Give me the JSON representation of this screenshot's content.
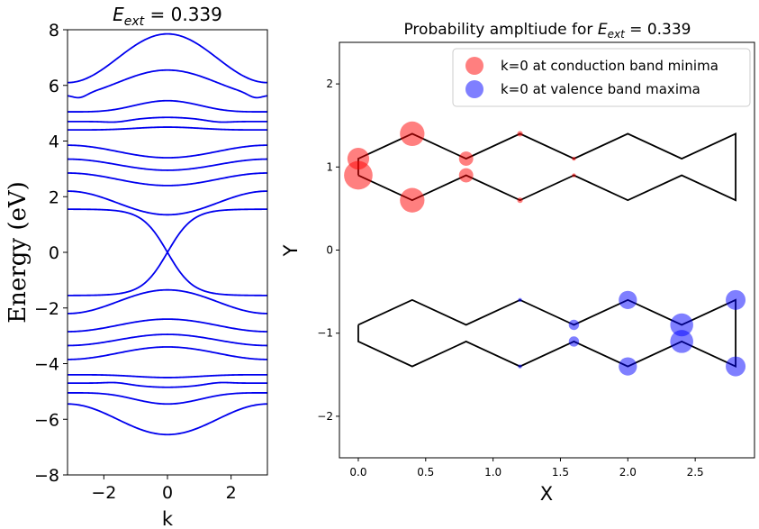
{
  "chart_data": [
    {
      "type": "line",
      "title": {
        "E": "E",
        "sub": "ext",
        "rest": " = 0.339"
      },
      "xlabel": "k",
      "ylabel": "Energy (eV)",
      "xlim": [
        -3.14159,
        3.14159
      ],
      "ylim": [
        -8,
        8
      ],
      "xticks": [
        -2,
        0,
        2
      ],
      "xtick_labels": [
        "−2",
        "0",
        "2"
      ],
      "yticks": [
        -8,
        -6,
        -4,
        -2,
        0,
        2,
        4,
        6,
        8
      ],
      "ytick_labels": [
        "−8",
        "−6",
        "−4",
        "−2",
        "0",
        "2",
        "4",
        "6",
        "8"
      ],
      "line_color": "#0000ee",
      "bands": [
        {
          "edge": 6.1,
          "center": 7.85,
          "shape": "cos"
        },
        {
          "edge": 5.65,
          "center": 6.55,
          "shape": "cos",
          "edge_dip": 5.6
        },
        {
          "edge": 5.05,
          "center": 5.45,
          "shape": "flat"
        },
        {
          "edge": 4.7,
          "center": 4.85,
          "shape": "flat",
          "mid_dip": 4.85
        },
        {
          "edge": 4.4,
          "center": 4.5,
          "shape": "flat"
        },
        {
          "edge": 3.85,
          "center": 3.4,
          "shape": "cos"
        },
        {
          "edge": 3.35,
          "center": 2.95,
          "shape": "cos"
        },
        {
          "edge": 2.85,
          "center": 2.4,
          "shape": "cos"
        },
        {
          "edge": 2.2,
          "center": 1.35,
          "shape": "cos"
        },
        {
          "edge": 1.55,
          "center": 0.0,
          "shape": "dirac"
        },
        {
          "edge": -1.55,
          "center": 0.0,
          "shape": "dirac"
        },
        {
          "edge": -2.2,
          "center": -1.35,
          "shape": "cos"
        },
        {
          "edge": -2.85,
          "center": -2.4,
          "shape": "cos"
        },
        {
          "edge": -3.35,
          "center": -2.95,
          "shape": "cos"
        },
        {
          "edge": -3.85,
          "center": -3.4,
          "shape": "cos"
        },
        {
          "edge": -4.4,
          "center": -4.5,
          "shape": "flat"
        },
        {
          "edge": -4.7,
          "center": -4.85,
          "shape": "flat",
          "mid_dip": -4.85
        },
        {
          "edge": -5.05,
          "center": -5.45,
          "shape": "flat"
        },
        {
          "edge": -5.45,
          "center": -6.55,
          "shape": "cos"
        }
      ]
    },
    {
      "type": "scatter",
      "title": {
        "prefix": "Probability ampltiude for ",
        "E": "E",
        "sub": "ext",
        "rest": " = 0.339"
      },
      "xlabel": "X",
      "ylabel": "Y",
      "xlim": [
        -0.14,
        2.94
      ],
      "ylim": [
        -2.5,
        2.5
      ],
      "xticks": [
        0.0,
        0.5,
        1.0,
        1.5,
        2.0,
        2.5
      ],
      "xtick_labels": [
        "0.0",
        "0.5",
        "1.0",
        "1.5",
        "2.0",
        "2.5"
      ],
      "yticks": [
        -2,
        -1,
        0,
        1,
        2
      ],
      "ytick_labels": [
        "−2",
        "−1",
        "0",
        "1",
        "2"
      ],
      "legend": {
        "position": "top-right",
        "entries": [
          {
            "label": "k=0 at conduction band minima",
            "color": "#ff0000"
          },
          {
            "label": "k=0 at valence band maxima",
            "color": "#0000ff"
          }
        ]
      },
      "lattice_color": "#000000",
      "lattice_paths": [
        [
          [
            0.0,
            0.9
          ],
          [
            0.0,
            1.1
          ],
          [
            0.4,
            1.4
          ],
          [
            0.8,
            1.1
          ],
          [
            1.2,
            1.4
          ],
          [
            1.6,
            1.1
          ],
          [
            2.0,
            1.4
          ],
          [
            2.4,
            1.1
          ],
          [
            2.8,
            1.4
          ],
          [
            2.8,
            0.6
          ],
          [
            2.4,
            0.9
          ],
          [
            2.0,
            0.6
          ],
          [
            1.6,
            0.9
          ],
          [
            1.2,
            0.6
          ],
          [
            0.8,
            0.9
          ],
          [
            0.4,
            0.6
          ],
          [
            0.0,
            0.9
          ]
        ],
        [
          [
            0.0,
            -0.9
          ],
          [
            0.0,
            -1.1
          ],
          [
            0.4,
            -1.4
          ],
          [
            0.8,
            -1.1
          ],
          [
            1.2,
            -1.4
          ],
          [
            1.6,
            -1.1
          ],
          [
            2.0,
            -1.4
          ],
          [
            2.4,
            -1.1
          ],
          [
            2.8,
            -1.4
          ],
          [
            2.8,
            -0.6
          ],
          [
            2.4,
            -0.9
          ],
          [
            2.0,
            -0.6
          ],
          [
            1.6,
            -0.9
          ],
          [
            1.2,
            -0.6
          ],
          [
            0.8,
            -0.9
          ],
          [
            0.4,
            -0.6
          ],
          [
            0.0,
            -0.9
          ]
        ]
      ],
      "series": [
        {
          "name": "k=0 at conduction band minima",
          "color": "#ff0000",
          "points": [
            {
              "x": 0.0,
              "y": 1.1,
              "amp": 0.55
            },
            {
              "x": 0.0,
              "y": 0.9,
              "amp": 0.72
            },
            {
              "x": 0.4,
              "y": 1.4,
              "amp": 0.62
            },
            {
              "x": 0.4,
              "y": 0.6,
              "amp": 0.62
            },
            {
              "x": 0.8,
              "y": 1.1,
              "amp": 0.36
            },
            {
              "x": 0.8,
              "y": 0.9,
              "amp": 0.36
            },
            {
              "x": 1.2,
              "y": 1.4,
              "amp": 0.14
            },
            {
              "x": 1.2,
              "y": 0.6,
              "amp": 0.14
            },
            {
              "x": 1.6,
              "y": 1.1,
              "amp": 0.05
            },
            {
              "x": 1.6,
              "y": 0.9,
              "amp": 0.05
            }
          ]
        },
        {
          "name": "k=0 at valence band maxima",
          "color": "#0000ff",
          "points": [
            {
              "x": 1.2,
              "y": -0.6,
              "amp": 0.07
            },
            {
              "x": 1.2,
              "y": -1.4,
              "amp": 0.07
            },
            {
              "x": 1.6,
              "y": -0.9,
              "amp": 0.26
            },
            {
              "x": 1.6,
              "y": -1.1,
              "amp": 0.26
            },
            {
              "x": 2.0,
              "y": -0.6,
              "amp": 0.46
            },
            {
              "x": 2.0,
              "y": -1.4,
              "amp": 0.46
            },
            {
              "x": 2.4,
              "y": -0.9,
              "amp": 0.58
            },
            {
              "x": 2.4,
              "y": -1.1,
              "amp": 0.58
            },
            {
              "x": 2.8,
              "y": -0.6,
              "amp": 0.5
            },
            {
              "x": 2.8,
              "y": -1.4,
              "amp": 0.5
            }
          ]
        }
      ]
    }
  ]
}
